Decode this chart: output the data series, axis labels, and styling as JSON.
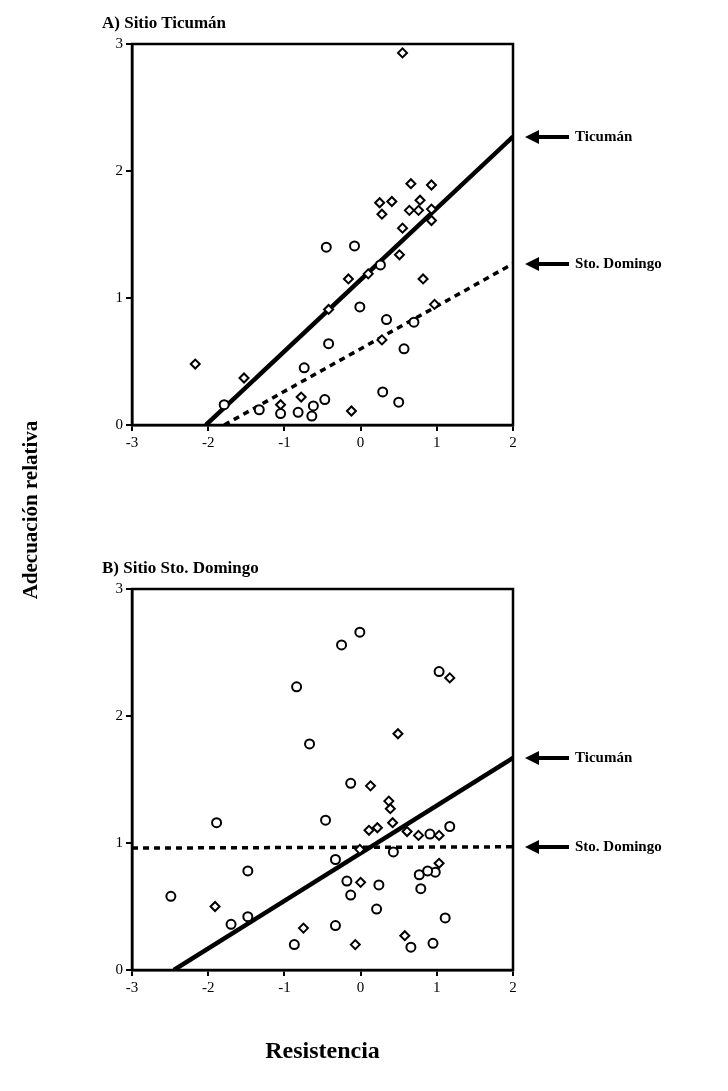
{
  "chart_data": [
    {
      "type": "scatter",
      "title": "A) Sitio Ticumán",
      "ylabel": "Adecuación relativa",
      "xlim": [
        -3,
        2
      ],
      "xticks": [
        -3,
        -2,
        -1,
        0,
        1,
        2
      ],
      "ylim": [
        0,
        3
      ],
      "yticks": [
        0,
        1,
        2,
        3
      ],
      "grid": false,
      "legend": "right",
      "series": [
        {
          "marker": "circle",
          "color": "#000000",
          "x": [
            -0.45,
            -0.08,
            0.26,
            -0.01,
            0.34,
            0.7,
            -0.42,
            0.57,
            -0.74,
            -1.79,
            -1.33,
            -1.05,
            -0.82,
            -0.62,
            -0.47,
            -0.64,
            0.29,
            0.5
          ],
          "values": [
            1.4,
            1.41,
            1.26,
            0.93,
            0.83,
            0.81,
            0.64,
            0.6,
            0.45,
            0.16,
            0.12,
            0.09,
            0.1,
            0.15,
            0.2,
            0.07,
            0.26,
            0.18
          ]
        },
        {
          "marker": "diamond",
          "color": "#000000",
          "x": [
            -2.17,
            -1.53,
            -1.05,
            -0.78,
            -0.12,
            -0.16,
            0.51,
            0.82,
            0.28,
            0.97,
            0.1,
            -0.42,
            0.55,
            0.66,
            0.93,
            0.25,
            0.41,
            0.28,
            0.64,
            0.78,
            0.76,
            0.93,
            0.93,
            0.55
          ],
          "values": [
            0.48,
            0.37,
            0.16,
            0.22,
            0.11,
            1.15,
            1.34,
            1.15,
            0.67,
            0.95,
            1.19,
            0.91,
            2.93,
            1.9,
            1.89,
            1.75,
            1.76,
            1.66,
            1.69,
            1.77,
            1.69,
            1.7,
            1.61,
            1.55
          ]
        },
        {
          "type": "line",
          "name": "Ticumán",
          "line_style": "solid",
          "marker": "none",
          "color": "#000000",
          "x": [
            -2.03,
            2
          ],
          "values": [
            0,
            2.27
          ]
        },
        {
          "type": "line",
          "name": "Sto. Domingo",
          "line_style": "dashed",
          "marker": "none",
          "color": "#000000",
          "x": [
            -1.79,
            2
          ],
          "values": [
            0,
            1.27
          ]
        }
      ]
    },
    {
      "type": "scatter",
      "title": "B) Sitio Sto. Domingo",
      "xlabel": "Resistencia",
      "xlim": [
        -3,
        2
      ],
      "xticks": [
        -3,
        -2,
        -1,
        0,
        1,
        2
      ],
      "ylim": [
        0,
        3
      ],
      "yticks": [
        0,
        1,
        2,
        3
      ],
      "grid": false,
      "legend": "right",
      "series": [
        {
          "marker": "circle",
          "color": "#000000",
          "x": [
            -0.25,
            -0.01,
            1.03,
            -0.84,
            -0.67,
            -0.13,
            -1.89,
            -0.46,
            1.17,
            -1.48,
            -0.33,
            0.43,
            0.91,
            -2.49,
            -1.7,
            -1.48,
            -0.87,
            -0.33,
            -0.13,
            -0.18,
            0.24,
            0.21,
            0.66,
            0.95,
            1.11,
            0.79,
            0.77,
            0.98,
            0.88
          ],
          "values": [
            2.56,
            2.66,
            2.35,
            2.23,
            1.78,
            1.47,
            1.16,
            1.18,
            1.13,
            0.78,
            0.87,
            0.93,
            1.07,
            0.58,
            0.36,
            0.42,
            0.2,
            0.35,
            0.59,
            0.7,
            0.67,
            0.48,
            0.18,
            0.21,
            0.41,
            0.64,
            0.75,
            0.77,
            0.78
          ]
        },
        {
          "marker": "diamond",
          "color": "#000000",
          "x": [
            1.17,
            0.49,
            0.13,
            0.37,
            0.39,
            0.42,
            0.11,
            0.22,
            0.61,
            0.76,
            1.03,
            -0.01,
            1.03,
            0.0,
            -1.91,
            -0.75,
            -0.07,
            0.58
          ],
          "values": [
            2.3,
            1.86,
            1.45,
            1.33,
            1.27,
            1.16,
            1.1,
            1.12,
            1.09,
            1.06,
            1.06,
            0.95,
            0.84,
            0.69,
            0.5,
            0.33,
            0.2,
            0.27
          ]
        },
        {
          "type": "line",
          "name": "Ticumán",
          "line_style": "solid",
          "marker": "none",
          "color": "#000000",
          "x": [
            -2.45,
            2
          ],
          "values": [
            0,
            1.67
          ]
        },
        {
          "type": "line",
          "name": "Sto. Domingo",
          "line_style": "dashed",
          "marker": "none",
          "color": "#000000",
          "x": [
            -3,
            2
          ],
          "values": [
            0.96,
            0.97
          ]
        }
      ]
    }
  ]
}
